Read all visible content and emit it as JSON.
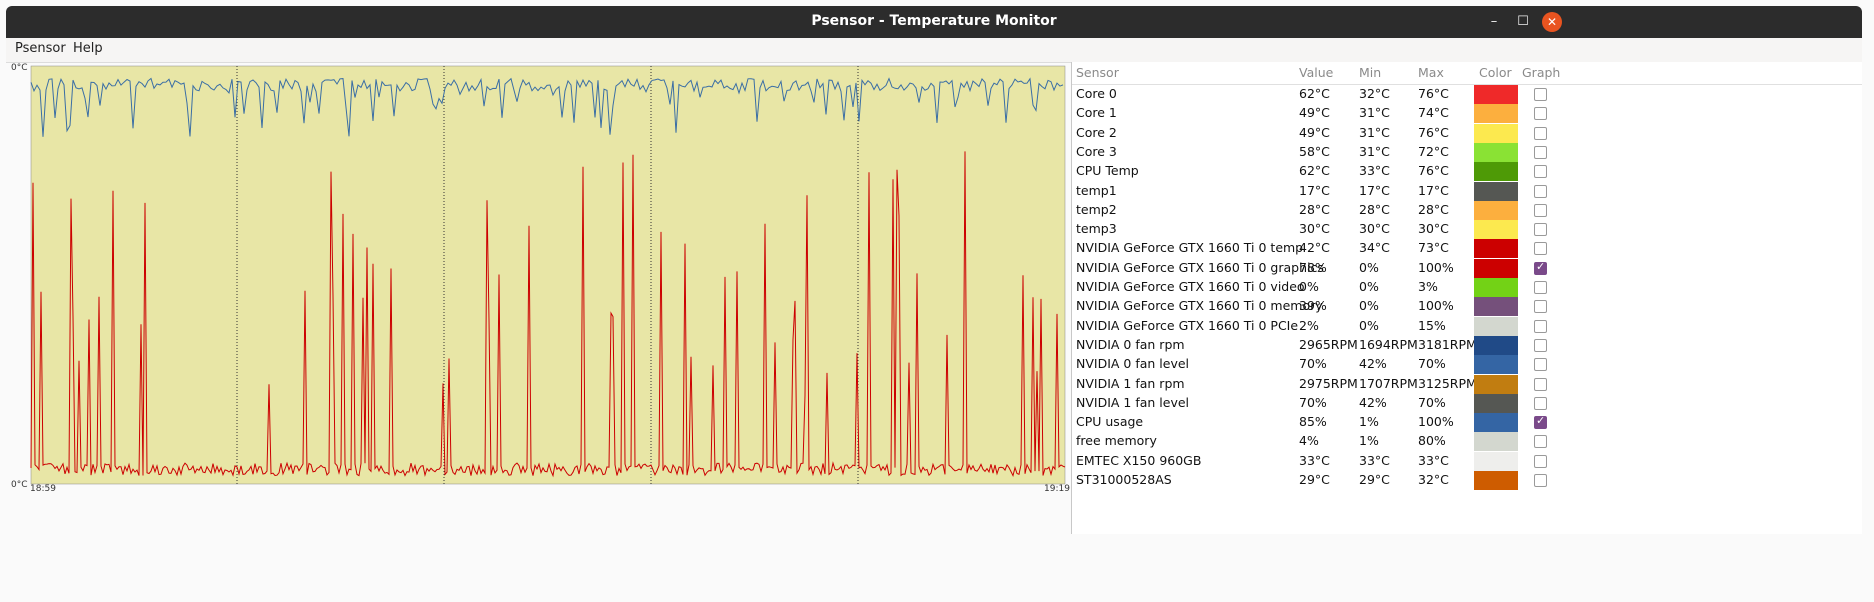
{
  "window": {
    "title": "Psensor - Temperature Monitor"
  },
  "window_controls": {
    "minimize": "–",
    "maximize": "☐",
    "close": "✕"
  },
  "menu": [
    "Psensor",
    "Help"
  ],
  "graph": {
    "y_top_label": "0°C",
    "y_bottom_label": "0°C",
    "x_start_label": "18:59",
    "x_end_label": "19:19",
    "background": "#e8e6a6",
    "series": [
      {
        "color": "#3a6ea5",
        "level": 0.85,
        "meaning": "CPU usage"
      },
      {
        "color": "#cc0000",
        "level": 0.78,
        "meaning": "NVIDIA GeForce GTX 1660 Ti 0 graphics"
      }
    ]
  },
  "table": {
    "headers": [
      "Sensor",
      "Value",
      "Min",
      "Max",
      "Color",
      "Graph"
    ],
    "rows": [
      {
        "sensor": "Core 0",
        "value": "62°C",
        "min": "32°C",
        "max": "76°C",
        "color": "#ef2929",
        "graph": false
      },
      {
        "sensor": "Core 1",
        "value": "49°C",
        "min": "31°C",
        "max": "74°C",
        "color": "#fcaf3e",
        "graph": false
      },
      {
        "sensor": "Core 2",
        "value": "49°C",
        "min": "31°C",
        "max": "76°C",
        "color": "#fce94f",
        "graph": false
      },
      {
        "sensor": "Core 3",
        "value": "58°C",
        "min": "31°C",
        "max": "72°C",
        "color": "#8ae234",
        "graph": false
      },
      {
        "sensor": "CPU Temp",
        "value": "62°C",
        "min": "33°C",
        "max": "76°C",
        "color": "#4e9a06",
        "graph": false
      },
      {
        "sensor": "temp1",
        "value": "17°C",
        "min": "17°C",
        "max": "17°C",
        "color": "#555753",
        "graph": false
      },
      {
        "sensor": "temp2",
        "value": "28°C",
        "min": "28°C",
        "max": "28°C",
        "color": "#fcaf3e",
        "graph": false
      },
      {
        "sensor": "temp3",
        "value": "30°C",
        "min": "30°C",
        "max": "30°C",
        "color": "#fce94f",
        "graph": false
      },
      {
        "sensor": "NVIDIA GeForce GTX 1660 Ti 0 temp",
        "value": "42°C",
        "min": "34°C",
        "max": "73°C",
        "color": "#cc0000",
        "graph": false
      },
      {
        "sensor": "NVIDIA GeForce GTX 1660 Ti 0 graphics",
        "value": "78%",
        "min": "0%",
        "max": "100%",
        "color": "#cc0000",
        "graph": true
      },
      {
        "sensor": "NVIDIA GeForce GTX 1660 Ti 0 video",
        "value": "0%",
        "min": "0%",
        "max": "3%",
        "color": "#73d216",
        "graph": false
      },
      {
        "sensor": "NVIDIA GeForce GTX 1660 Ti 0 memory",
        "value": "39%",
        "min": "0%",
        "max": "100%",
        "color": "#75507b",
        "graph": false
      },
      {
        "sensor": "NVIDIA GeForce GTX 1660 Ti 0 PCIe",
        "value": "2%",
        "min": "0%",
        "max": "15%",
        "color": "#d3d7cf",
        "graph": false
      },
      {
        "sensor": "NVIDIA 0 fan rpm",
        "value": "2965RPM",
        "min": "1694RPM",
        "max": "3181RPM",
        "color": "#204a87",
        "graph": false
      },
      {
        "sensor": "NVIDIA 0 fan level",
        "value": "70%",
        "min": "42%",
        "max": "70%",
        "color": "#3465a4",
        "graph": false
      },
      {
        "sensor": "NVIDIA 1 fan rpm",
        "value": "2975RPM",
        "min": "1707RPM",
        "max": "3125RPM",
        "color": "#c17d11",
        "graph": false
      },
      {
        "sensor": "NVIDIA 1 fan level",
        "value": "70%",
        "min": "42%",
        "max": "70%",
        "color": "#555753",
        "graph": false
      },
      {
        "sensor": "CPU usage",
        "value": "85%",
        "min": "1%",
        "max": "100%",
        "color": "#3465a4",
        "graph": true
      },
      {
        "sensor": "free memory",
        "value": "4%",
        "min": "1%",
        "max": "80%",
        "color": "#d3d7cf",
        "graph": false
      },
      {
        "sensor": "EMTEC X150 960GB",
        "value": "33°C",
        "min": "33°C",
        "max": "33°C",
        "color": "#eeeeec",
        "graph": false
      },
      {
        "sensor": "ST31000528AS",
        "value": "29°C",
        "min": "29°C",
        "max": "32°C",
        "color": "#ce5c00",
        "graph": false
      }
    ]
  }
}
